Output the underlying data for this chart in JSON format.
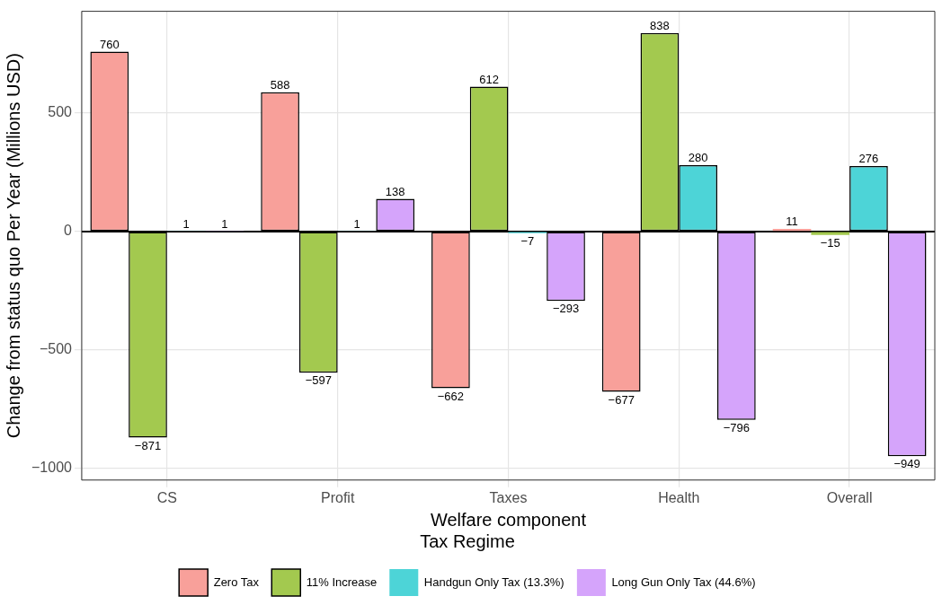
{
  "chart_data": {
    "type": "bar",
    "xlabel": "Welfare component",
    "ylabel": "Change from status quo Per Year (Millions USD)",
    "legend_title": "Tax Regime",
    "categories": [
      "CS",
      "Profit",
      "Taxes",
      "Health",
      "Overall"
    ],
    "series": [
      {
        "name": "Zero Tax",
        "color": "#f8a09a",
        "values": [
          760,
          588,
          -662,
          -677,
          11
        ]
      },
      {
        "name": "11% Increase",
        "color": "#a3c94f",
        "values": [
          -871,
          -597,
          612,
          838,
          -15
        ]
      },
      {
        "name": "Handgun Only Tax (13.3%)",
        "color": "#4dd4d7",
        "values": [
          1,
          1,
          -7,
          280,
          276
        ]
      },
      {
        "name": "Long Gun Only Tax (44.6%)",
        "color": "#d5a4fb",
        "values": [
          1,
          138,
          -293,
          -796,
          -949
        ]
      }
    ],
    "ylim": [
      -1050,
      930
    ],
    "yticks": [
      -1000,
      -500,
      0,
      500
    ],
    "grid": true,
    "legend": "bottom",
    "data_labels": true,
    "ref_lines": [
      {
        "axis": "y",
        "value": 0,
        "color": "#000000"
      }
    ]
  }
}
